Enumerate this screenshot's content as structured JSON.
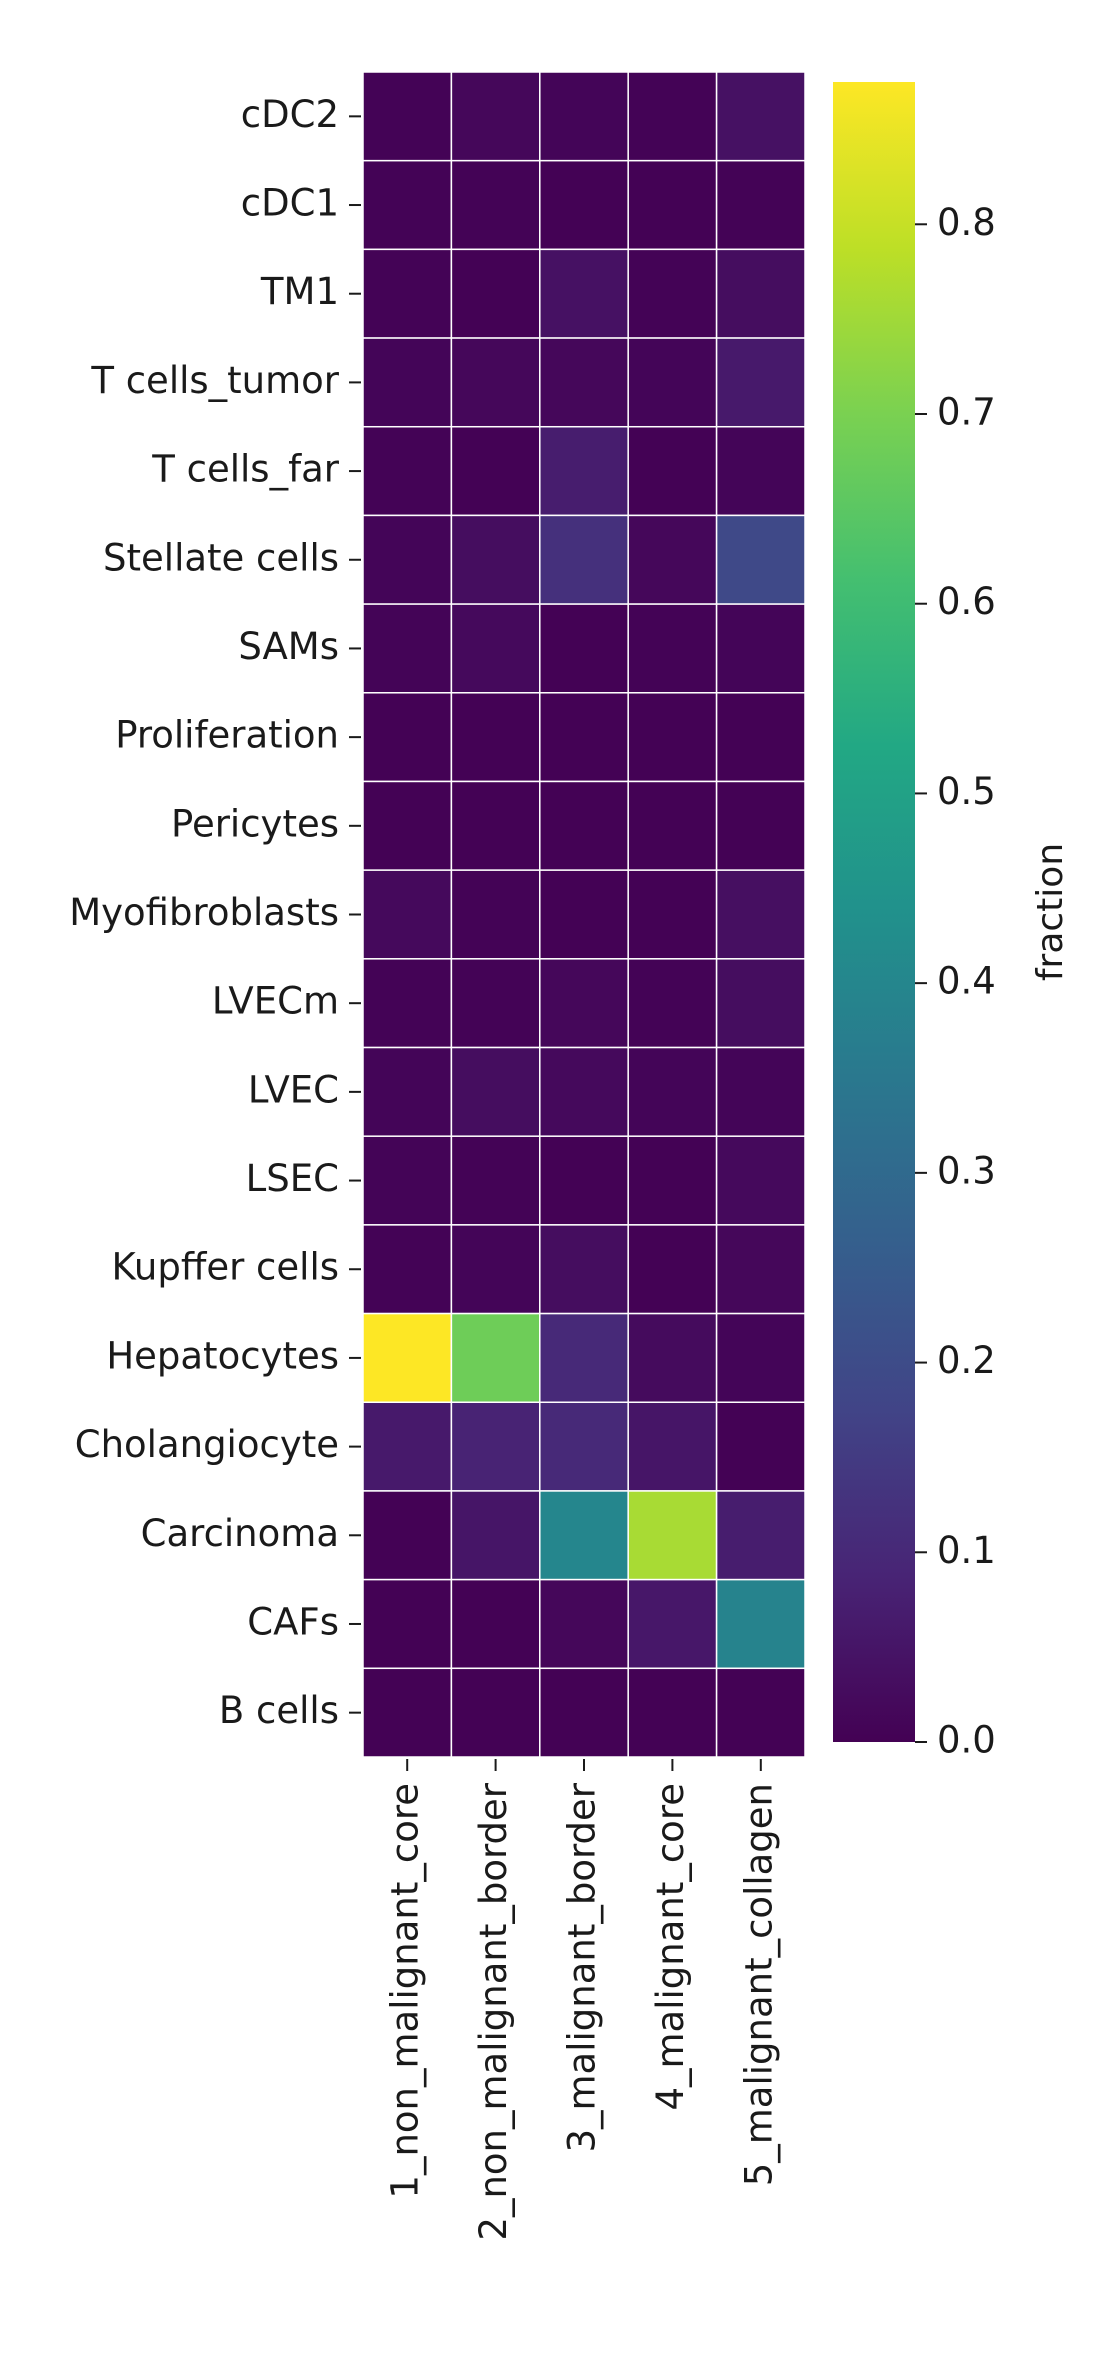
{
  "chart_data": {
    "type": "heatmap",
    "title": "",
    "xlabel": "",
    "ylabel": "",
    "colormap": "viridis",
    "colorbar": {
      "label": "fraction",
      "range": [
        0.0,
        0.875
      ],
      "ticks": [
        0.0,
        0.1,
        0.2,
        0.3,
        0.4,
        0.5,
        0.6,
        0.7,
        0.8
      ],
      "tick_labels": [
        "0.0",
        "0.1",
        "0.2",
        "0.3",
        "0.4",
        "0.5",
        "0.6",
        "0.7",
        "0.8"
      ],
      "placement": "right"
    },
    "columns": [
      "1_non_malignant_core",
      "2_non_malignant_border",
      "3_malignant_border",
      "4_malignant_core",
      "5_malignant_collagen"
    ],
    "rows": [
      "cDC2",
      "cDC1",
      "TM1",
      "T cells_tumor",
      "T cells_far",
      "Stellate cells",
      "SAMs",
      "Proliferation",
      "Pericytes",
      "Myofibroblasts",
      "LVECm",
      "LVEC",
      "LSEC",
      "Kupffer cells",
      "Hepatocytes",
      "Cholangiocyte",
      "Carcinoma",
      "CAFs",
      "B cells"
    ],
    "values": [
      [
        0.005,
        0.015,
        0.01,
        0.005,
        0.04
      ],
      [
        0.005,
        0.005,
        0.003,
        0.003,
        0.005
      ],
      [
        0.005,
        0.003,
        0.04,
        0.005,
        0.03
      ],
      [
        0.01,
        0.015,
        0.015,
        0.01,
        0.06
      ],
      [
        0.005,
        0.003,
        0.07,
        0.003,
        0.01
      ],
      [
        0.01,
        0.03,
        0.12,
        0.015,
        0.19
      ],
      [
        0.008,
        0.02,
        0.003,
        0.005,
        0.01
      ],
      [
        0.003,
        0.003,
        0.003,
        0.003,
        0.003
      ],
      [
        0.003,
        0.003,
        0.003,
        0.003,
        0.003
      ],
      [
        0.02,
        0.005,
        0.003,
        0.003,
        0.035
      ],
      [
        0.005,
        0.005,
        0.015,
        0.005,
        0.03
      ],
      [
        0.01,
        0.03,
        0.02,
        0.01,
        0.01
      ],
      [
        0.008,
        0.005,
        0.003,
        0.003,
        0.02
      ],
      [
        0.005,
        0.01,
        0.03,
        0.003,
        0.015
      ],
      [
        0.875,
        0.68,
        0.1,
        0.025,
        0.01
      ],
      [
        0.06,
        0.085,
        0.1,
        0.05,
        0.003
      ],
      [
        0.003,
        0.05,
        0.4,
        0.76,
        0.07
      ],
      [
        0.003,
        0.003,
        0.015,
        0.055,
        0.39
      ],
      [
        0.003,
        0.003,
        0.003,
        0.003,
        0.003
      ]
    ]
  }
}
